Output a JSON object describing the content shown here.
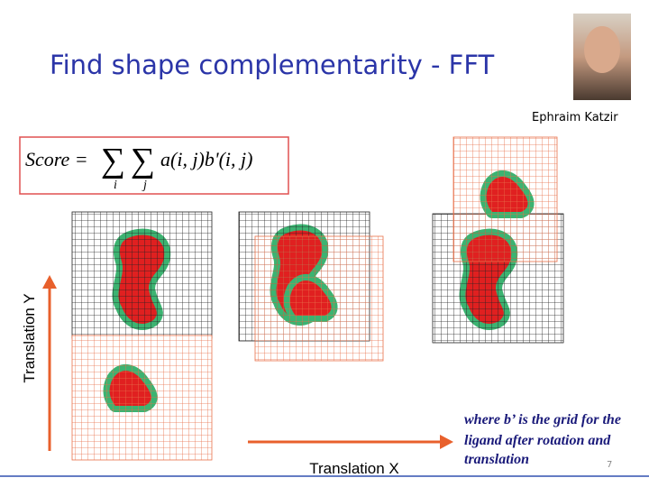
{
  "title": "Find shape complementarity - FFT",
  "photo_caption": "Ephraim Katzir",
  "formula": {
    "lhs": "Score =",
    "sum_symbol": "∑",
    "index_1": "i",
    "index_2": "j",
    "rhs": "a(i, j)b'(i, j)"
  },
  "axis_y_label": "Translation Y",
  "axis_x_label": "Translation X",
  "note": [
    "where b’ is the grid for the",
    "ligand after rotation and",
    "translation"
  ],
  "page_number": "7"
}
